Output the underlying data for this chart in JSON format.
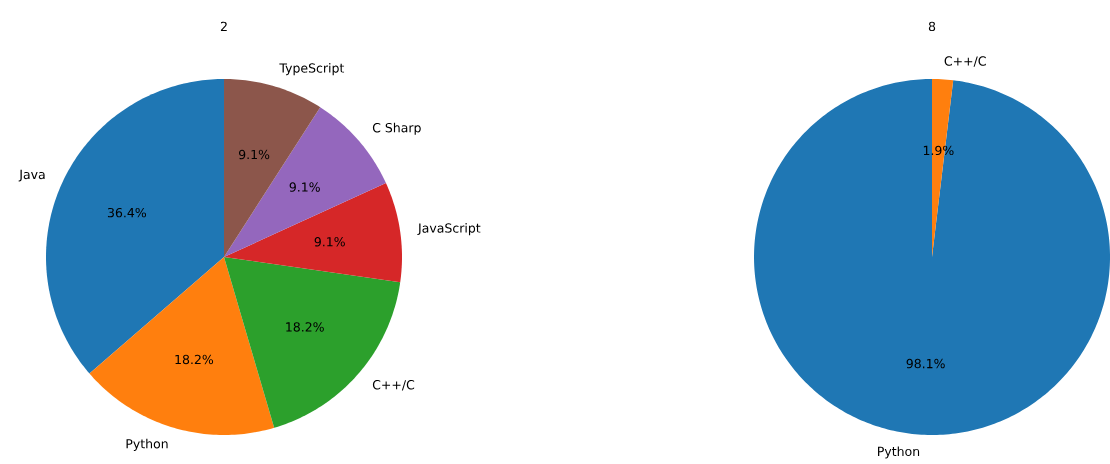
{
  "chart_data": [
    {
      "type": "pie",
      "title": "2",
      "categories": [
        "Java",
        "Python",
        "C++/C",
        "JavaScript",
        "C Sharp",
        "TypeScript"
      ],
      "values": [
        36.4,
        18.2,
        18.2,
        9.1,
        9.1,
        9.1
      ],
      "colors": [
        "#1f77b4",
        "#ff7f0e",
        "#2ca02c",
        "#d62728",
        "#9467bd",
        "#8c564b"
      ],
      "value_labels": [
        "36.4%",
        "18.2%",
        "18.2%",
        "9.1%",
        "9.1%",
        "9.1%"
      ]
    },
    {
      "type": "pie",
      "title": "8",
      "categories": [
        "Python",
        "C++/C"
      ],
      "values": [
        98.1,
        1.9
      ],
      "colors": [
        "#1f77b4",
        "#ff7f0e"
      ],
      "value_labels": [
        "98.1%",
        "1.9%"
      ]
    }
  ]
}
